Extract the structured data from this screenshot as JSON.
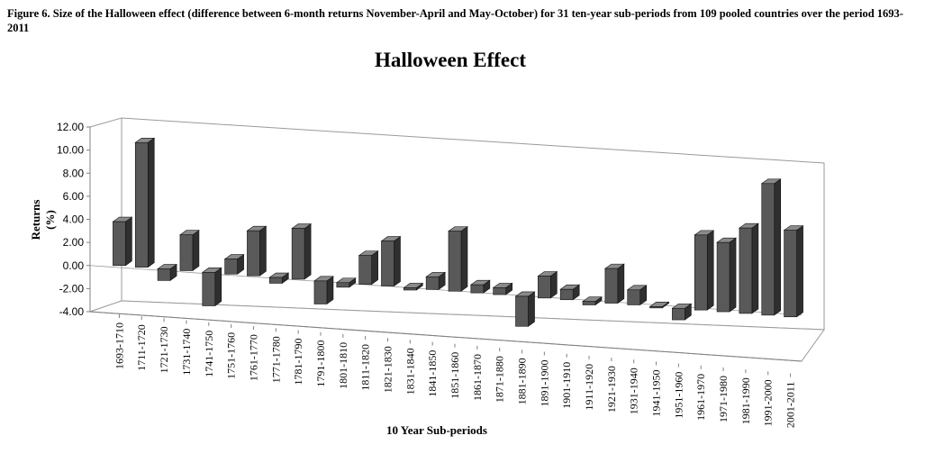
{
  "caption": "Figure  6. Size of the Halloween effect (difference between 6-month returns November-April and May-October) for 31 ten-year sub-periods from 109 pooled countries over the period 1693-2011",
  "chart_data": {
    "type": "bar",
    "title": "Halloween Effect",
    "xlabel": "10 Year Sub-periods",
    "ylabel": "Returns (%)",
    "ylim": [
      -4,
      12
    ],
    "yticks": [
      "12.00",
      "10.00",
      "8.00",
      "6.00",
      "4.00",
      "2.00",
      "0.00",
      "-2.00",
      "-4.00"
    ],
    "grid": false,
    "legend": "none",
    "bar_color": "#595959",
    "categories": [
      "1693-1710",
      "1711-1720",
      "1721-1730",
      "1731-1740",
      "1741-1750",
      "1751-1760",
      "1761-1770",
      "1771-1780",
      "1781-1790",
      "1791-1800",
      "1801-1810",
      "1811-1820",
      "1821-1830",
      "1831-1840",
      "1841-1850",
      "1851-1860",
      "1861-1870",
      "1871-1880",
      "1881-1890",
      "1891-1900",
      "1901-1910",
      "1911-1920",
      "1921-1930",
      "1931-1940",
      "1941-1950",
      "1951-1960",
      "1961-1970",
      "1971-1980",
      "1981-1990",
      "1991-2000",
      "2001-2011"
    ],
    "values": [
      3.8,
      10.8,
      -1.0,
      3.1,
      -2.9,
      1.3,
      3.9,
      -0.5,
      4.4,
      -2.0,
      -0.4,
      2.5,
      3.9,
      -0.2,
      1.1,
      5.2,
      0.7,
      0.6,
      -2.6,
      1.9,
      0.9,
      -0.3,
      3.0,
      1.3,
      -0.1,
      -1.0,
      6.5,
      6.0,
      7.4,
      11.4,
      7.5
    ]
  }
}
